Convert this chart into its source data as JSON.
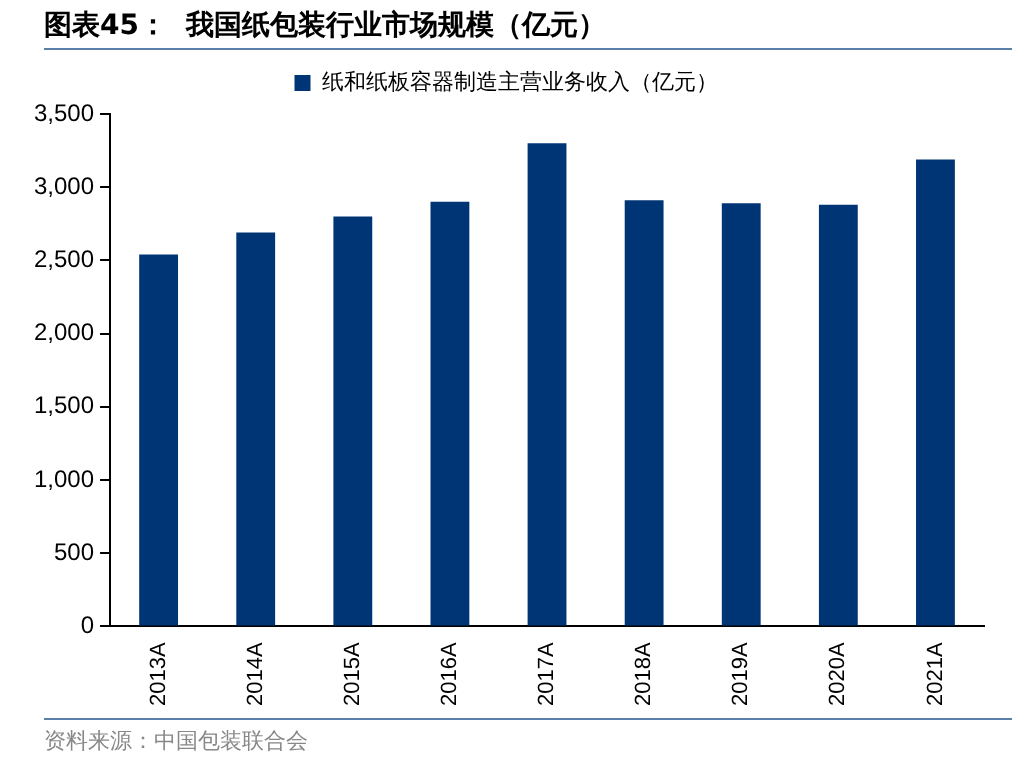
{
  "chart_data": {
    "type": "bar",
    "title": "图表45：  我国纸包装行业市场规模（亿元）",
    "categories": [
      "2013A",
      "2014A",
      "2015A",
      "2016A",
      "2017A",
      "2018A",
      "2019A",
      "2020A",
      "2021A"
    ],
    "series": [
      {
        "name": "纸和纸板容器制造主营业务收入（亿元）",
        "color": "#003575",
        "values": [
          2540,
          2690,
          2800,
          2900,
          3300,
          2910,
          2890,
          2880,
          3190
        ]
      }
    ],
    "ylim": [
      0,
      3500
    ],
    "yticks": [
      0,
      500,
      {
        "value": 1000,
        "label": "1,000"
      },
      {
        "value": 1500,
        "label": "1,500"
      },
      {
        "value": 2000,
        "label": "2,000"
      },
      {
        "value": 2500,
        "label": "2,500"
      },
      {
        "value": 3000,
        "label": "3,000"
      },
      {
        "value": 3500,
        "label": "3,500"
      }
    ],
    "grid": false,
    "legend": "top",
    "annotations": [
      "资料来源：中国包装联合会"
    ]
  }
}
